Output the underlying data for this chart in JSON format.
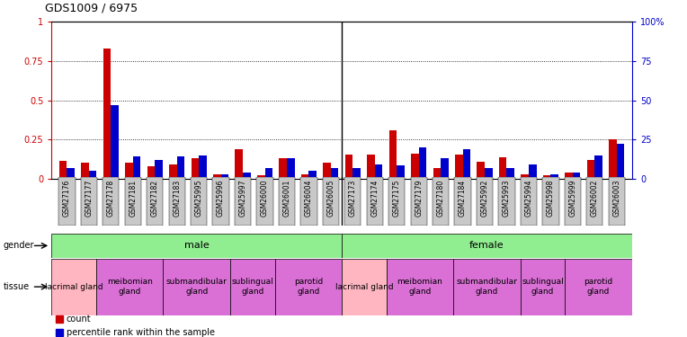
{
  "title": "GDS1009 / 6975",
  "samples": [
    "GSM27176",
    "GSM27177",
    "GSM27178",
    "GSM27181",
    "GSM27182",
    "GSM27183",
    "GSM25995",
    "GSM25996",
    "GSM25997",
    "GSM26000",
    "GSM26001",
    "GSM26004",
    "GSM26005",
    "GSM27173",
    "GSM27174",
    "GSM27175",
    "GSM27179",
    "GSM27180",
    "GSM27184",
    "GSM25992",
    "GSM25993",
    "GSM25994",
    "GSM25998",
    "GSM25999",
    "GSM26002",
    "GSM26003"
  ],
  "red_values": [
    0.115,
    0.1,
    0.83,
    0.1,
    0.08,
    0.09,
    0.13,
    0.03,
    0.19,
    0.02,
    0.13,
    0.03,
    0.1,
    0.155,
    0.155,
    0.31,
    0.16,
    0.07,
    0.155,
    0.105,
    0.135,
    0.03,
    0.02,
    0.04,
    0.12,
    0.25
  ],
  "blue_values": [
    7,
    5,
    47,
    14,
    12,
    14,
    15,
    3,
    4,
    7,
    13,
    5,
    6.5,
    7,
    9,
    8.5,
    20,
    13,
    19,
    6.5,
    6.5,
    9,
    3,
    4,
    15,
    22
  ],
  "ylim_left": [
    0,
    1
  ],
  "ylim_right": [
    0,
    100
  ],
  "yticks_left": [
    0,
    0.25,
    0.5,
    0.75,
    1.0
  ],
  "yticks_right": [
    0,
    25,
    50,
    75,
    100
  ],
  "ytick_labels_left": [
    "0",
    "0.25",
    "0.5",
    "0.75",
    "1"
  ],
  "ytick_labels_right": [
    "0",
    "25",
    "50",
    "75",
    "100%"
  ],
  "tissue_groups": [
    {
      "label": "lacrimal gland",
      "start": 0,
      "end": 2,
      "color": "#FFB6C1"
    },
    {
      "label": "meibomian\ngland",
      "start": 2,
      "end": 5,
      "color": "#DA70D6"
    },
    {
      "label": "submandibular\ngland",
      "start": 5,
      "end": 8,
      "color": "#DA70D6"
    },
    {
      "label": "sublingual\ngland",
      "start": 8,
      "end": 10,
      "color": "#DA70D6"
    },
    {
      "label": "parotid\ngland",
      "start": 10,
      "end": 13,
      "color": "#DA70D6"
    },
    {
      "label": "lacrimal gland",
      "start": 13,
      "end": 15,
      "color": "#FFB6C1"
    },
    {
      "label": "meibomian\ngland",
      "start": 15,
      "end": 18,
      "color": "#DA70D6"
    },
    {
      "label": "submandibular\ngland",
      "start": 18,
      "end": 21,
      "color": "#DA70D6"
    },
    {
      "label": "sublingual\ngland",
      "start": 21,
      "end": 23,
      "color": "#DA70D6"
    },
    {
      "label": "parotid\ngland",
      "start": 23,
      "end": 26,
      "color": "#DA70D6"
    }
  ],
  "gender_groups": [
    {
      "label": "male",
      "start": 0,
      "end": 13,
      "color": "#90EE90"
    },
    {
      "label": "female",
      "start": 13,
      "end": 26,
      "color": "#90EE90"
    }
  ],
  "bar_width": 0.35,
  "red_color": "#CC0000",
  "blue_color": "#0000CC",
  "xtick_bg": "#C8C8C8",
  "legend_labels": [
    "count",
    "percentile rank within the sample"
  ]
}
